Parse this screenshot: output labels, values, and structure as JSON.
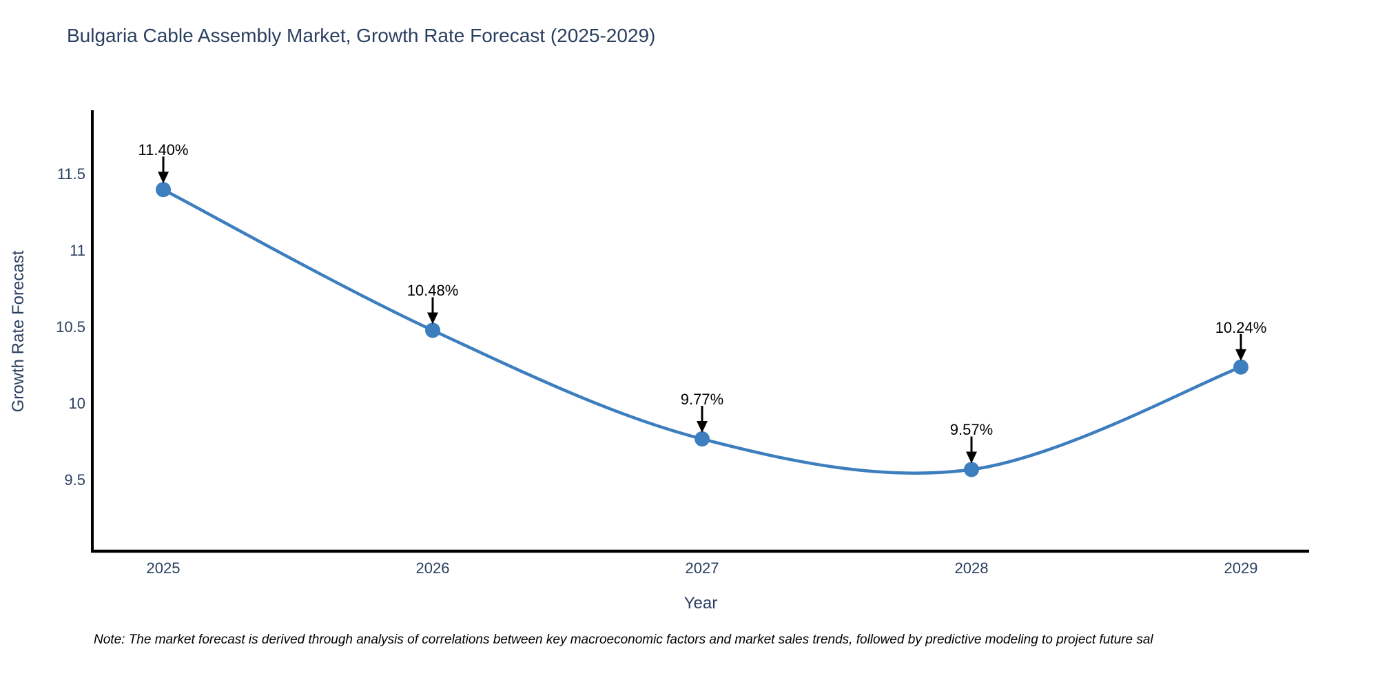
{
  "title": "Bulgaria Cable Assembly Market, Growth Rate Forecast (2025-2029)",
  "chart_data": {
    "type": "line",
    "line_shape": "spline",
    "title": "Bulgaria Cable Assembly Market, Growth Rate Forecast (2025-2029)",
    "xlabel": "Year",
    "ylabel": "Growth Rate Forecast",
    "categories": [
      "2025",
      "2026",
      "2027",
      "2028",
      "2029"
    ],
    "values": [
      11.4,
      10.48,
      9.77,
      9.57,
      10.24
    ],
    "point_labels": [
      "11.40%",
      "10.48%",
      "9.77%",
      "9.57%",
      "10.24%"
    ],
    "yticks": [
      "9.5",
      "10",
      "10.5",
      "11",
      "11.5"
    ],
    "ylim": [
      9.05,
      11.9
    ],
    "grid": false,
    "legend": "none",
    "annotations_style": "value label with downward black arrow above each point",
    "colors": {
      "line": "#3d7ebf",
      "marker": "#3d7ebf",
      "axis_line": "#000000",
      "tick_text": "#2a3f5f",
      "title_text": "#2a3f5f",
      "annotation_text": "#000000",
      "arrow": "#000000",
      "background": "#ffffff"
    }
  },
  "note": "Note: The market forecast is derived through analysis of correlations between key macroeconomic factors and market sales trends, followed by predictive modeling to project future sal"
}
